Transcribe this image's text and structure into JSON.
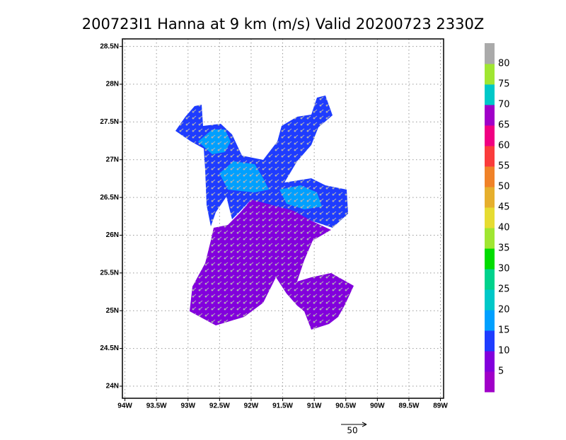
{
  "map": {
    "title": "200723I1 Hanna at 9 km (m/s) Valid 20200723 2330Z",
    "xlim": [
      -94.04,
      -88.95
    ],
    "ylim": [
      23.84,
      28.6
    ],
    "xticks": [
      {
        "value": -94,
        "label": "94W"
      },
      {
        "value": -93.5,
        "label": "93.5W"
      },
      {
        "value": -93,
        "label": "93W"
      },
      {
        "value": -92.5,
        "label": "92.5W"
      },
      {
        "value": -92,
        "label": "92W"
      },
      {
        "value": -91.5,
        "label": "91.5W"
      },
      {
        "value": -91,
        "label": "91W"
      },
      {
        "value": -90.5,
        "label": "90.5W"
      },
      {
        "value": -90,
        "label": "90W"
      },
      {
        "value": -89.5,
        "label": "89.5W"
      },
      {
        "value": -89,
        "label": "89W"
      }
    ],
    "yticks": [
      {
        "value": 24,
        "label": "24N"
      },
      {
        "value": 24.5,
        "label": "24.5N"
      },
      {
        "value": 25,
        "label": "25N"
      },
      {
        "value": 25.5,
        "label": "25.5N"
      },
      {
        "value": 26,
        "label": "26N"
      },
      {
        "value": 26.5,
        "label": "26.5N"
      },
      {
        "value": 27,
        "label": "27N"
      },
      {
        "value": 27.5,
        "label": "27.5N"
      },
      {
        "value": 28,
        "label": "28N"
      },
      {
        "value": 28.5,
        "label": "28.5N"
      }
    ],
    "grid": true,
    "colorbar": {
      "levels": [
        5,
        10,
        15,
        20,
        25,
        30,
        35,
        40,
        45,
        50,
        55,
        60,
        65,
        70,
        75,
        80
      ],
      "colors": [
        "#a000c8",
        "#8200dc",
        "#1e3cff",
        "#00a0ff",
        "#00c8c8",
        "#00d28c",
        "#00dc00",
        "#a0e632",
        "#e6dc32",
        "#e6af2d",
        "#f08228",
        "#fa3c3c",
        "#f00082",
        "#a000c8",
        "#00c8c8",
        "#a0e632",
        "#aaaaaa"
      ]
    },
    "reference_vector": 50
  }
}
